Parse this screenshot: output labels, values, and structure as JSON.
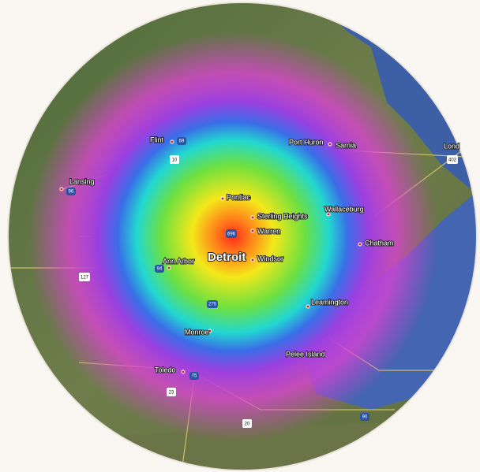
{
  "map": {
    "places": [
      "Flint",
      "Port Huron",
      "Sarnia",
      "Lond",
      "Lansing",
      "Pontiac",
      "Sterling Heights",
      "Wallaceburg",
      "Warren",
      "Detroit",
      "Windsor",
      "Ann Arbor",
      "Chatham",
      "Leamington",
      "Monroe",
      "Pelee Island",
      "Toledo"
    ],
    "highways": [
      "69",
      "10",
      "402",
      "96",
      "696",
      "94",
      "127",
      "275",
      "75",
      "23",
      "20",
      "90"
    ]
  }
}
